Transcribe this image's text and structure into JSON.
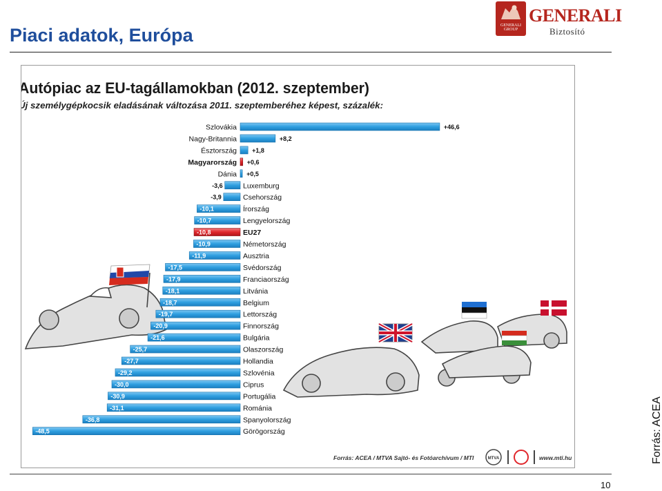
{
  "slide": {
    "title": "Piaci adatok, Európa",
    "side_source": "Forrás: ACEA",
    "page_number": "10"
  },
  "logo": {
    "word": "GENERALI",
    "sub": "Biztosító",
    "seal_text": "GENERALI GROUP",
    "color": "#b5261e"
  },
  "chart_data": {
    "type": "bar",
    "orientation": "horizontal",
    "title": "Autópiac az EU-tagállamokban (2012. szeptember)",
    "subtitle": "Új személygépkocsik eladásának változása 2011. szeptemberéhez képest, százalék:",
    "source": "Forrás: ACEA / MTVA Sajtó- és Fotóarchívum / MTI",
    "website": "www.mti.hu",
    "bar_color": "#2f9fe0",
    "highlight_color": "#e0262b",
    "categories": [
      "Szlovákia",
      "Nagy-Britannia",
      "Észtország",
      "Magyarország",
      "Dánia",
      "Luxemburg",
      "Csehország",
      "Írország",
      "Lengyelország",
      "EU27",
      "Németország",
      "Ausztria",
      "Svédország",
      "Franciaország",
      "Litvánia",
      "Belgium",
      "Lettország",
      "Finnország",
      "Bulgária",
      "Olaszország",
      "Hollandia",
      "Szlovénia",
      "Ciprus",
      "Portugália",
      "Románia",
      "Spanyolország",
      "Görögország"
    ],
    "values": [
      46.6,
      8.2,
      1.8,
      0.6,
      0.5,
      -3.6,
      -3.9,
      -10.1,
      -10.7,
      -10.8,
      -10.9,
      -11.9,
      -17.5,
      -17.9,
      -18.1,
      -18.7,
      -19.7,
      -20.9,
      -21.6,
      -25.7,
      -27.7,
      -29.2,
      -30.0,
      -30.9,
      -31.1,
      -36.8,
      -48.5
    ],
    "value_labels": [
      "+46,6",
      "+8,2",
      "+1,8",
      "+0,6",
      "+0,5",
      "-3,6",
      "-3,9",
      "-10,1",
      "-10,7",
      "-10,8",
      "-10,9",
      "-11,9",
      "-17,5",
      "-17,9",
      "-18,1",
      "-18,7",
      "-19,7",
      "-20,9",
      "-21,6",
      "-25,7",
      "-27,7",
      "-29,2",
      "-30,0",
      "-30,9",
      "-31,1",
      "-36,8",
      "-48,5"
    ],
    "highlight": [
      "Magyarország",
      "EU27"
    ]
  }
}
